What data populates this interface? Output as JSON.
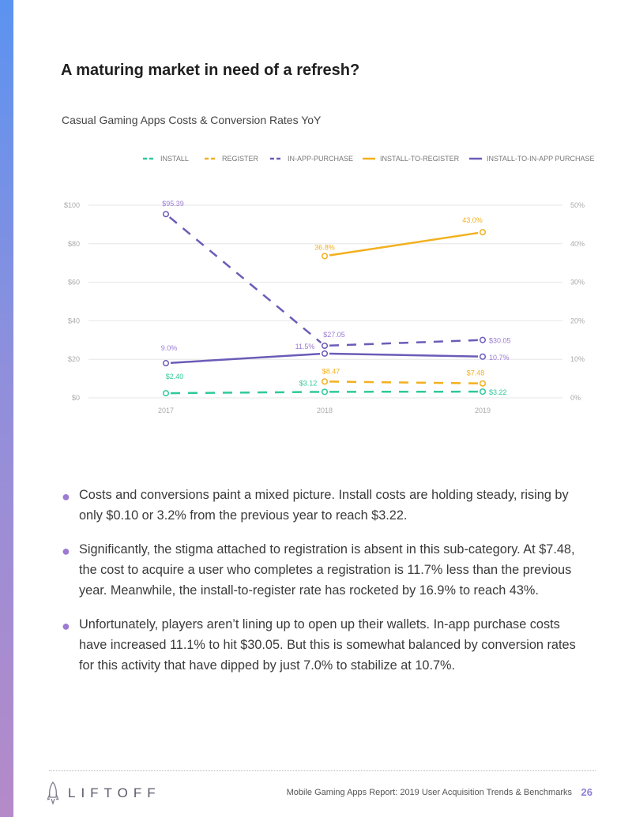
{
  "page": {
    "title": "A maturing market in need of a refresh?",
    "bullets": [
      "Costs and conversions paint a mixed picture. Install costs are holding steady, rising by only $0.10 or 3.2% from the previous year to reach $3.22.",
      "Significantly, the stigma attached to registration is absent in this sub-category. At $7.48, the cost to acquire a user who completes a registration is 11.7% less than the previous year. Meanwhile, the install-to-register rate has rocketed by 16.9% to reach 43%.",
      "Unfortunately, players aren’t lining up to open up their wallets. In-app purchase costs have increased 11.1% to hit $30.05. But this is somewhat balanced by conversion rates for this activity that have dipped by just 7.0% to stabilize at 10.7%."
    ]
  },
  "footer": {
    "logo": "LIFTOFF",
    "report": "Mobile Gaming Apps Report: 2019 User Acquisition Trends & Benchmarks",
    "page_number": "26"
  },
  "colors": {
    "install": "#2ec99a",
    "register": "#f2b01e",
    "iap": "#6c5bb8",
    "conversion_iap": "#9b7bd3"
  },
  "chart_data": {
    "type": "line",
    "title": "Casual Gaming Apps Costs & Conversion Rates YoY",
    "categories": [
      "2017",
      "2018",
      "2019"
    ],
    "left_axis": {
      "ticks": [
        "$0",
        "$20",
        "$40",
        "$60",
        "$80",
        "$100"
      ],
      "ylim": [
        0,
        100
      ]
    },
    "right_axis": {
      "ticks": [
        "0%",
        "10%",
        "20%",
        "30%",
        "40%",
        "50%"
      ],
      "ylim": [
        0,
        50
      ]
    },
    "series": [
      {
        "name": "INSTALL",
        "axis": "left",
        "dashed": true,
        "color": "#2ec99a",
        "values": [
          2.4,
          3.12,
          3.22
        ],
        "labels": [
          "$2.40",
          "$3.12",
          "$3.22"
        ]
      },
      {
        "name": "REGISTER",
        "axis": "left",
        "dashed": true,
        "color": "#f2b01e",
        "values": [
          null,
          8.47,
          7.48
        ],
        "labels": [
          "",
          "$8.47",
          "$7.48"
        ]
      },
      {
        "name": "IN-APP-PURCHASE",
        "axis": "left",
        "dashed": true,
        "color": "#6c5bb8",
        "values": [
          95.39,
          27.05,
          30.05
        ],
        "labels": [
          "$95.39",
          "$27.05",
          "$30.05"
        ]
      },
      {
        "name": "INSTALL-TO-REGISTER",
        "axis": "right",
        "dashed": false,
        "color": "#f2b01e",
        "values": [
          null,
          36.8,
          43.0
        ],
        "labels": [
          "",
          "36.8%",
          "43.0%"
        ]
      },
      {
        "name": "INSTALL-TO-IN-APP PURCHASE",
        "axis": "right",
        "dashed": false,
        "color": "#6c5bb8",
        "values": [
          9.0,
          11.5,
          10.7
        ],
        "labels": [
          "9.0%",
          "11.5%",
          "10.7%"
        ]
      }
    ]
  }
}
